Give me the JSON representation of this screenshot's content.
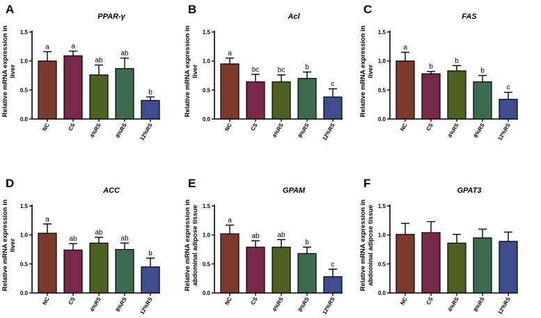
{
  "chart_data": [
    {
      "type": "bar",
      "panel": "A",
      "title": "PPAR-γ",
      "ylabel_lines": [
        "Relative mRNA expression in",
        "liver"
      ],
      "categories": [
        "NC",
        "CS",
        "4%RS",
        "8%RS",
        "12%RS"
      ],
      "values": [
        1.0,
        1.09,
        0.76,
        0.87,
        0.32
      ],
      "errors": [
        0.16,
        0.08,
        0.17,
        0.18,
        0.06
      ],
      "labels": [
        "a",
        "a",
        "ab",
        "ab",
        "b"
      ],
      "ylim": [
        0,
        1.5
      ],
      "yticks": [
        "0.0",
        "0.5",
        "1.0",
        "1.5"
      ]
    },
    {
      "type": "bar",
      "panel": "B",
      "title": "Acl",
      "ylabel_lines": [
        "Relative mRNA expression in",
        "liver"
      ],
      "categories": [
        "NC",
        "CS",
        "4%RS",
        "8%RS",
        "12%RS"
      ],
      "values": [
        0.95,
        0.64,
        0.64,
        0.7,
        0.38
      ],
      "errors": [
        0.1,
        0.13,
        0.12,
        0.11,
        0.14
      ],
      "labels": [
        "a",
        "bc",
        "bc",
        "b",
        "c"
      ],
      "ylim": [
        0,
        1.5
      ],
      "yticks": [
        "0.0",
        "0.5",
        "1.0",
        "1.5"
      ]
    },
    {
      "type": "bar",
      "panel": "C",
      "title": "FAS",
      "ylabel_lines": [
        "Relative mRNA expression in",
        "liver"
      ],
      "categories": [
        "NC",
        "CS",
        "4%RS",
        "8%RS",
        "12%RS"
      ],
      "values": [
        1.0,
        0.78,
        0.83,
        0.64,
        0.34
      ],
      "errors": [
        0.15,
        0.04,
        0.09,
        0.11,
        0.12
      ],
      "labels": [
        "a",
        "b",
        "b",
        "b",
        "c"
      ],
      "ylim": [
        0,
        1.5
      ],
      "yticks": [
        "0.0",
        "0.5",
        "1.0",
        "1.5"
      ]
    },
    {
      "type": "bar",
      "panel": "D",
      "title": "ACC",
      "ylabel_lines": [
        "Relative mRNA expression in",
        "liver"
      ],
      "categories": [
        "NC",
        "CS",
        "4%RS",
        "8%RS",
        "12%RS"
      ],
      "values": [
        1.03,
        0.74,
        0.86,
        0.75,
        0.45
      ],
      "errors": [
        0.16,
        0.11,
        0.1,
        0.11,
        0.15
      ],
      "labels": [
        "a",
        "ab",
        "ab",
        "ab",
        "b"
      ],
      "ylim": [
        0,
        1.5
      ],
      "yticks": [
        "0.0",
        "0.5",
        "1.0",
        "1.5"
      ]
    },
    {
      "type": "bar",
      "panel": "E",
      "title": "GPAM",
      "ylabel_lines": [
        "Relative mRNA expression in",
        "abdominal adipose tissue"
      ],
      "categories": [
        "NC",
        "CS",
        "4%RS",
        "8%RS",
        "12%RS"
      ],
      "values": [
        1.02,
        0.79,
        0.79,
        0.68,
        0.28
      ],
      "errors": [
        0.15,
        0.11,
        0.13,
        0.11,
        0.13
      ],
      "labels": [
        "a",
        "ab",
        "ab",
        "b",
        "c"
      ],
      "ylim": [
        0,
        1.5
      ],
      "yticks": [
        "0.0",
        "0.5",
        "1.0",
        "1.5"
      ]
    },
    {
      "type": "bar",
      "panel": "F",
      "title": "GPAT3",
      "ylabel_lines": [
        "Relative mRNA expression in",
        "abdominal adipose tissue"
      ],
      "categories": [
        "NC",
        "CS",
        "4%RS",
        "8%RS",
        "12%RS"
      ],
      "values": [
        1.01,
        1.04,
        0.86,
        0.95,
        0.89
      ],
      "errors": [
        0.19,
        0.19,
        0.15,
        0.15,
        0.16
      ],
      "labels": [
        "",
        "",
        "",
        "",
        ""
      ],
      "ylim": [
        0,
        1.5
      ],
      "yticks": [
        "0.0",
        "0.5",
        "1.0",
        "1.5"
      ]
    }
  ],
  "colors": {
    "bars": [
      "#7b3a2c",
      "#78284b",
      "#4e6120",
      "#3b6b50",
      "#3d4d8e"
    ],
    "axis": "#000000"
  }
}
